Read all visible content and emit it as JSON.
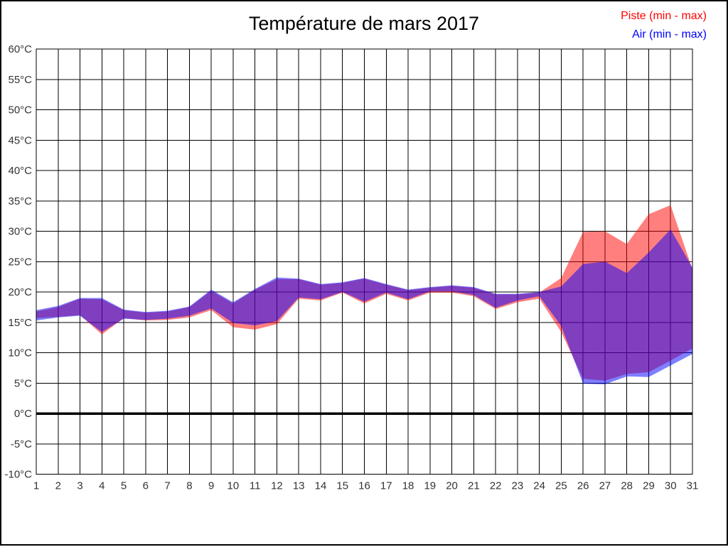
{
  "title": "Température de mars 2017",
  "legend": {
    "piste_label": "Piste (min - max)",
    "air_label": "Air (min - max)"
  },
  "colors": {
    "piste": "#FF0000",
    "air": "#0000FF",
    "overlap_rendered": "#8040BF",
    "piste_rendered": "#FF8080",
    "air_rendered": "#8080FF",
    "grid": "#000000",
    "axis_text": "#333333",
    "zero_line": "#000000",
    "background": "#FFFFFF"
  },
  "chart_data": {
    "type": "area",
    "subtype": "min-max range bands, two overlapping series with 50% fill opacity",
    "title": "Température de mars 2017",
    "xlabel": "",
    "ylabel": "",
    "x": [
      1,
      2,
      3,
      4,
      5,
      6,
      7,
      8,
      9,
      10,
      11,
      12,
      13,
      14,
      15,
      16,
      17,
      18,
      19,
      20,
      21,
      22,
      23,
      24,
      25,
      26,
      27,
      28,
      29,
      30,
      31
    ],
    "xlim": [
      1,
      31
    ],
    "ylim": [
      -10,
      60
    ],
    "ytick_step": 5,
    "ytick_suffix": "°C",
    "zero_line_at": 0,
    "grid": true,
    "legend_position": "top-right",
    "series": [
      {
        "name": "Piste (min - max)",
        "color": "#FF0000",
        "fill_opacity": 0.5,
        "min": [
          15.7,
          15.9,
          16.2,
          13.0,
          15.7,
          15.3,
          15.4,
          15.8,
          17.0,
          14.2,
          13.8,
          14.7,
          18.9,
          18.6,
          19.9,
          18.1,
          19.7,
          18.6,
          19.9,
          19.9,
          19.3,
          17.2,
          18.3,
          18.9,
          13.4,
          5.7,
          5.4,
          6.5,
          6.8,
          8.7,
          10.7
        ],
        "max": [
          16.8,
          17.5,
          18.9,
          18.8,
          17.0,
          16.6,
          16.8,
          17.5,
          20.2,
          18.1,
          20.4,
          22.1,
          22.1,
          21.2,
          21.5,
          22.2,
          21.2,
          20.3,
          20.7,
          21.0,
          20.7,
          19.6,
          19.6,
          19.9,
          22.3,
          29.9,
          30.0,
          27.9,
          32.8,
          34.3,
          23.7
        ]
      },
      {
        "name": "Air (min - max)",
        "color": "#0000FF",
        "fill_opacity": 0.5,
        "min": [
          15.3,
          15.8,
          16.1,
          13.4,
          15.6,
          15.4,
          15.6,
          16.1,
          17.3,
          14.9,
          14.5,
          15.2,
          19.1,
          18.8,
          20.0,
          18.4,
          19.9,
          18.8,
          20.1,
          20.1,
          19.5,
          17.4,
          18.6,
          19.3,
          14.4,
          4.9,
          4.8,
          6.1,
          6.0,
          7.9,
          9.8
        ],
        "max": [
          17.0,
          17.7,
          19.0,
          19.0,
          17.1,
          16.7,
          16.9,
          17.6,
          20.4,
          18.3,
          20.5,
          22.4,
          22.2,
          21.3,
          21.6,
          22.3,
          21.3,
          20.4,
          20.8,
          21.1,
          20.8,
          19.7,
          19.7,
          20.0,
          20.9,
          24.6,
          25.0,
          23.1,
          26.5,
          30.3,
          24.0
        ]
      }
    ]
  }
}
